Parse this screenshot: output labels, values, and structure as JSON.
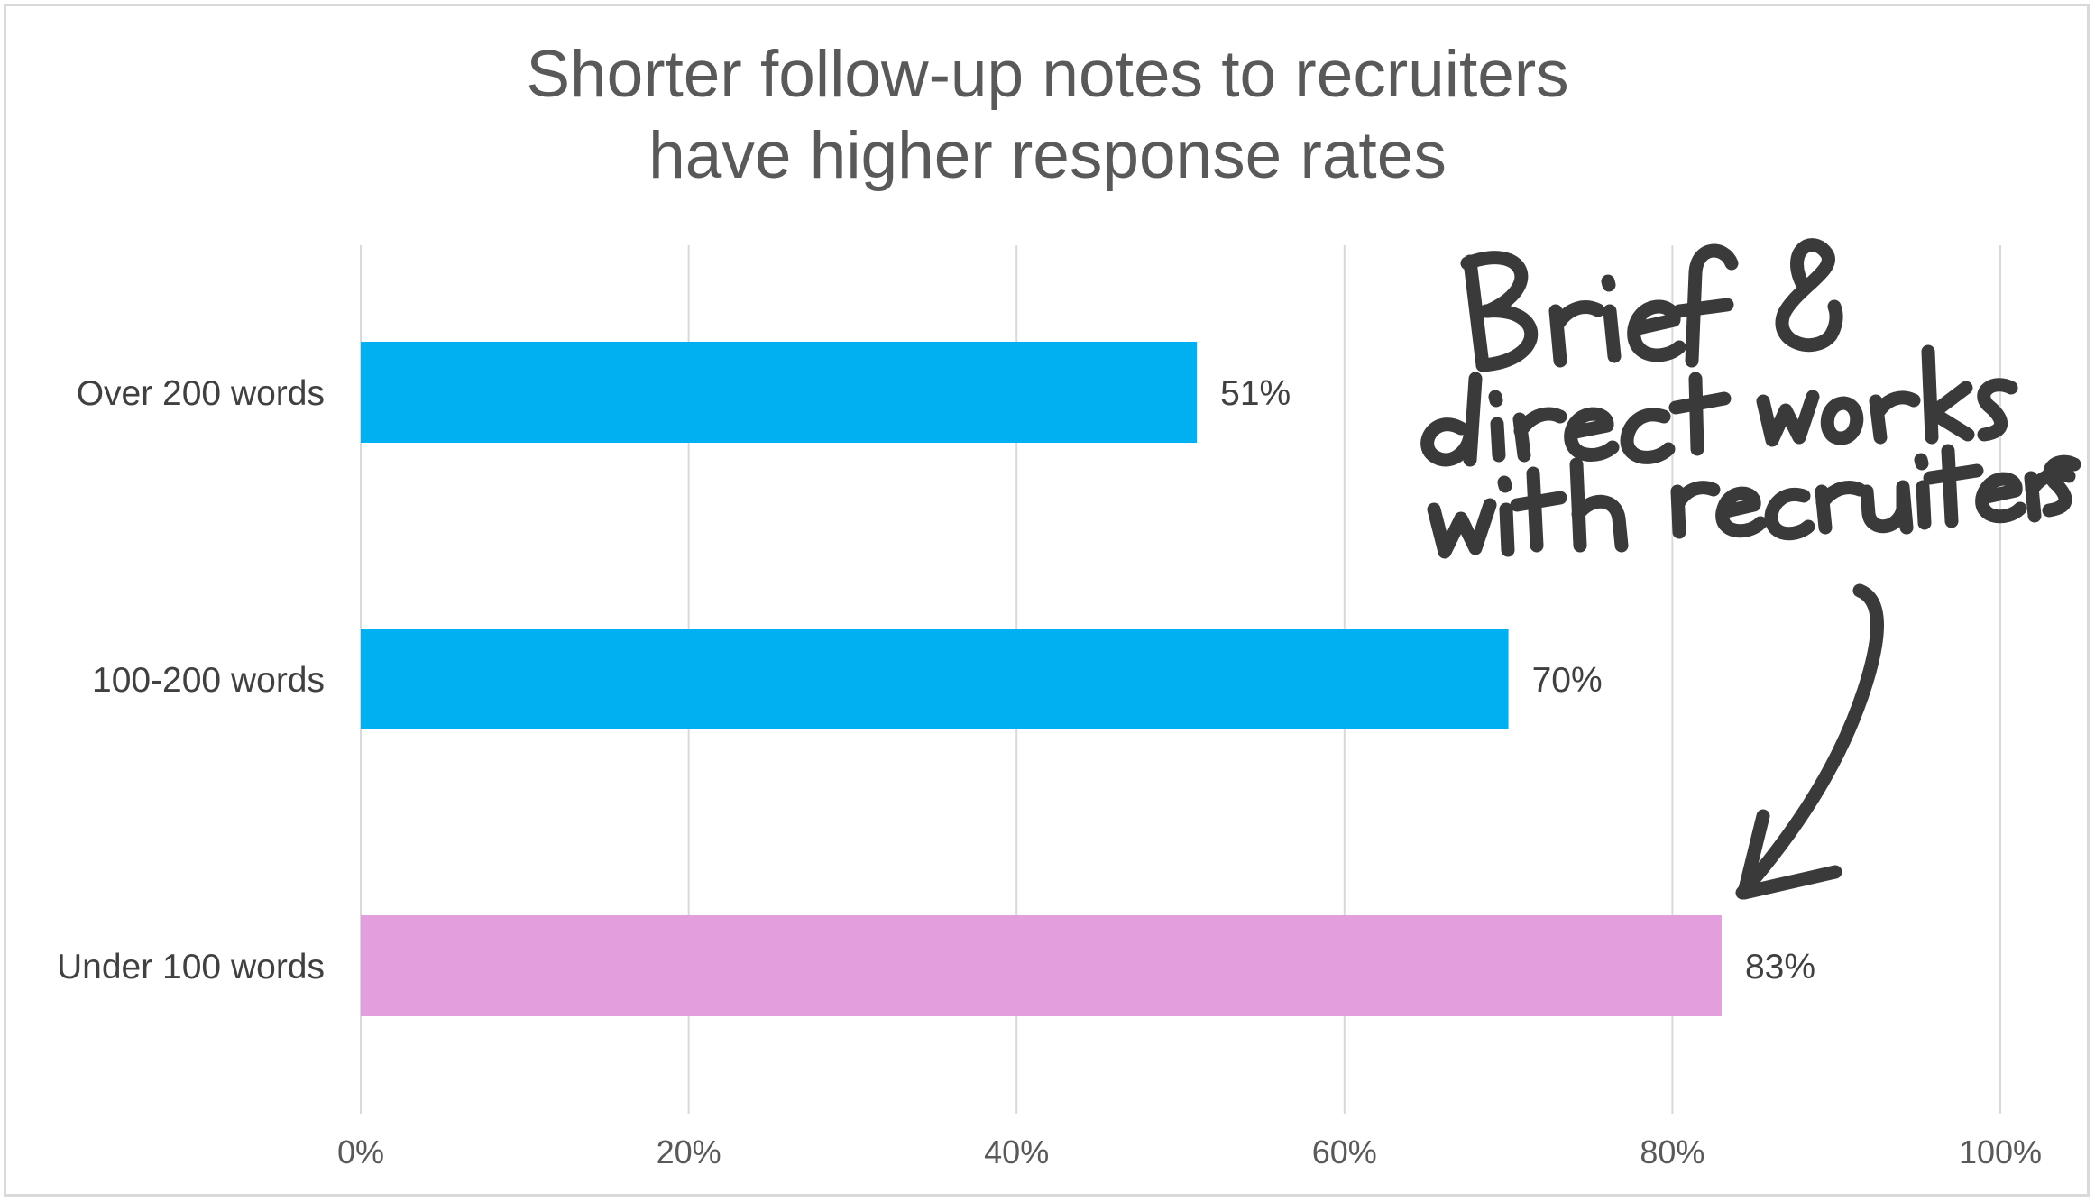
{
  "chart_data": {
    "type": "bar",
    "orientation": "horizontal",
    "title": [
      "Shorter follow-up notes to recruiters",
      "have higher response rates"
    ],
    "categories": [
      "Over 200 words",
      "100-200 words",
      "Under 100 words"
    ],
    "values": [
      51,
      70,
      83
    ],
    "data_labels": [
      "51%",
      "70%",
      "83%"
    ],
    "bar_colors": [
      "#00B0F0",
      "#00B0F0",
      "#E39EDD"
    ],
    "xlim": [
      0,
      100
    ],
    "x_ticks": [
      0,
      20,
      40,
      60,
      80,
      100
    ],
    "x_tick_labels": [
      "0%",
      "20%",
      "40%",
      "60%",
      "80%",
      "100%"
    ],
    "grid": "vertical",
    "xlabel": "",
    "ylabel": "",
    "annotation": {
      "lines": [
        "Brief &",
        "direct works",
        "with recruiters"
      ],
      "style": "handwritten",
      "color": "#3a3a3a",
      "points_to": "Under 100 words"
    }
  }
}
